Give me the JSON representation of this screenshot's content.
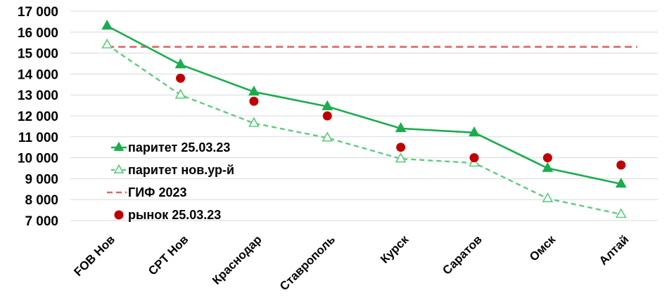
{
  "chart_data": {
    "type": "line",
    "categories": [
      "FOB Нов",
      "CPT Нов",
      "Краснодар",
      "Ставрополь",
      "Курск",
      "Саратов",
      "Омск",
      "Алтай"
    ],
    "ylim": [
      7000,
      17000
    ],
    "y_ticks": [
      7000,
      8000,
      9000,
      10000,
      11000,
      12000,
      13000,
      14000,
      15000,
      16000,
      17000
    ],
    "y_tick_labels": [
      "7 000",
      "8 000",
      "9 000",
      "10 000",
      "11 000",
      "12 000",
      "13 000",
      "14 000",
      "15 000",
      "16 000",
      "17 000"
    ],
    "grid": "horizontal",
    "legend_position": "left, inside plot area",
    "series": [
      {
        "name": "паритет 25.03.23",
        "style": "solid-line-filled-triangle",
        "color": "#1aad4e",
        "values": [
          16300,
          14450,
          13150,
          12450,
          11400,
          11200,
          9500,
          8750
        ]
      },
      {
        "name": "паритет нов.ур-й",
        "style": "dashed-line-hollow-triangle",
        "color": "#5ccd7e",
        "values": [
          15400,
          13000,
          11650,
          10950,
          9950,
          9750,
          8050,
          7300
        ]
      },
      {
        "name": "ГИФ 2023",
        "style": "dashed-line",
        "color": "#e06666",
        "values": [
          15300,
          15300,
          15300,
          15300,
          15300,
          15300,
          15300,
          15300
        ]
      },
      {
        "name": "рынок 25.03.23",
        "style": "dot",
        "color": "#c00000",
        "values": [
          null,
          13800,
          12700,
          12000,
          10500,
          10000,
          10000,
          9650
        ]
      }
    ]
  }
}
